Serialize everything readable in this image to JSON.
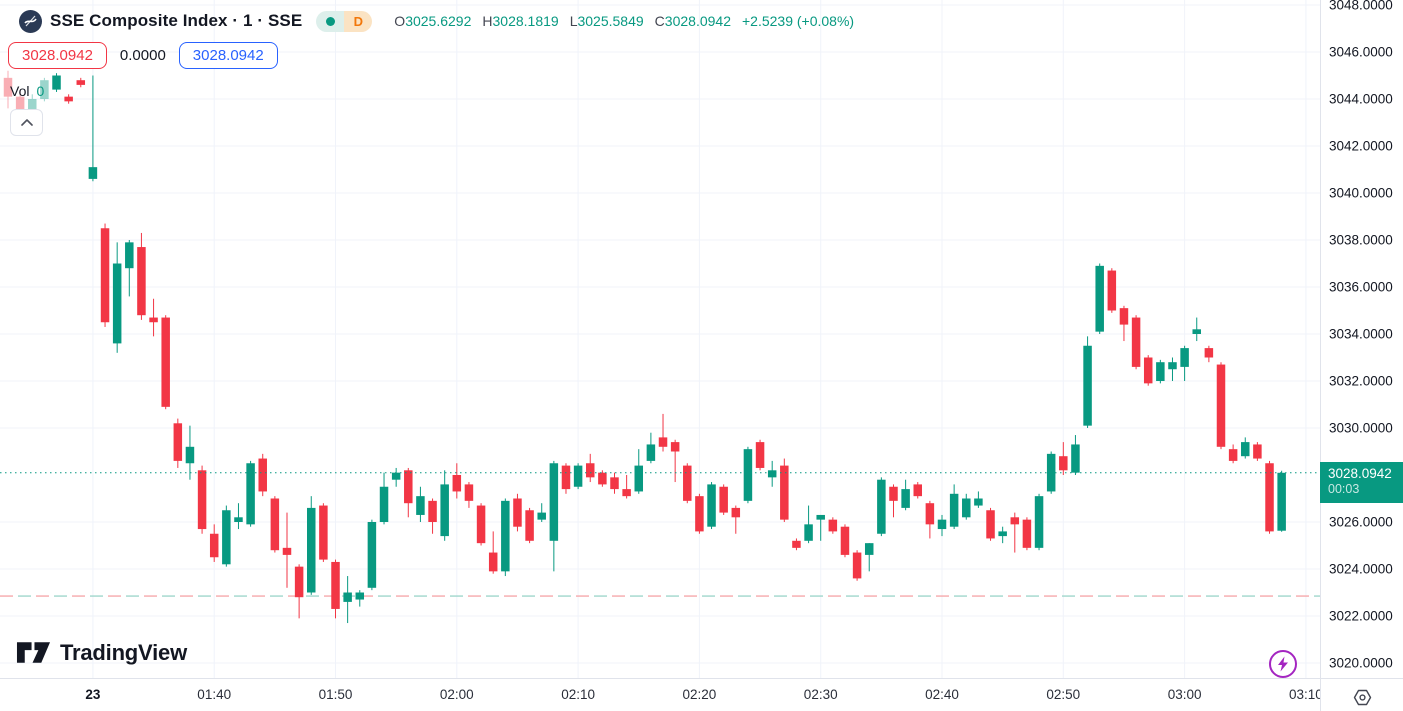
{
  "colors": {
    "up": "#089981",
    "down": "#f23645",
    "accent_blue": "#2962ff",
    "badge_bg": "#089981",
    "grid": "#f0f3fa",
    "axis_border": "#e0e3eb",
    "session_pink": "#f5a8ab",
    "session_teal": "#9fd6cc",
    "purple": "#a426c1"
  },
  "header": {
    "symbol_title": "SSE Composite Index · 1 · SSE",
    "status_dot": "market-status",
    "interval_badge": "D",
    "ohlc": {
      "open_label": "O",
      "open": "3025.6292",
      "high_label": "H",
      "high": "3028.1819",
      "low_label": "L",
      "low": "3025.5849",
      "close_label": "C",
      "close": "3028.0942",
      "change": "+2.5239 (+0.08%)"
    },
    "trade_panel": {
      "sell_price": "3028.0942",
      "spread": "0.0000",
      "buy_price": "3028.0942"
    },
    "volume": {
      "label": "Vol",
      "value": "0"
    }
  },
  "watermark": {
    "brand": "TradingView"
  },
  "price_axis": {
    "ticks": [
      "3048.0000",
      "3046.0000",
      "3044.0000",
      "3042.0000",
      "3040.0000",
      "3038.0000",
      "3036.0000",
      "3034.0000",
      "3032.0000",
      "3030.0000",
      "3026.0000",
      "3024.0000",
      "3022.0000",
      "3020.0000"
    ],
    "badge": {
      "price": "3028.0942",
      "countdown": "00:03"
    }
  },
  "time_axis": {
    "labels": [
      {
        "text": "23",
        "slot": 7,
        "bold": true
      },
      {
        "text": "01:40",
        "slot": 17
      },
      {
        "text": "01:50",
        "slot": 27
      },
      {
        "text": "02:00",
        "slot": 37
      },
      {
        "text": "02:10",
        "slot": 47
      },
      {
        "text": "02:20",
        "slot": 57
      },
      {
        "text": "02:30",
        "slot": 67
      },
      {
        "text": "02:40",
        "slot": 77
      },
      {
        "text": "02:50",
        "slot": 87
      },
      {
        "text": "03:00",
        "slot": 97
      },
      {
        "text": "03:10",
        "slot": 107
      }
    ]
  },
  "chart_data": {
    "type": "candlestick",
    "title": "SSE Composite Index",
    "interval": "1",
    "exchange": "SSE",
    "ylim": [
      3019.3,
      3048.2
    ],
    "grid": true,
    "legend_position": "top-left",
    "last_price": 3028.0942,
    "countdown": "00:03",
    "reference_lines": [
      {
        "name": "last-price",
        "value": 3028.0942,
        "style": "dotted"
      },
      {
        "name": "session-break",
        "value": 3022.85,
        "style": "dashed-bicolor"
      }
    ],
    "candles": [
      [
        "01:23",
        3044.9,
        3045.2,
        3043.6,
        3044.1
      ],
      [
        "01:24",
        3044.1,
        3044.4,
        3042.9,
        3043.4
      ],
      [
        "01:25",
        3043.4,
        3044.2,
        3043.2,
        3044.0
      ],
      [
        "01:26",
        3044.0,
        3044.9,
        3043.9,
        3044.8
      ],
      [
        "01:27",
        3044.4,
        3045.1,
        3044.3,
        3045.0
      ],
      [
        "01:28",
        3044.1,
        3044.2,
        3043.8,
        3043.9
      ],
      [
        "01:29",
        3044.8,
        3044.9,
        3044.5,
        3044.6
      ],
      [
        "01:30",
        3040.6,
        3045.0,
        3040.5,
        3041.1
      ],
      [
        "01:31",
        3038.5,
        3038.7,
        3034.3,
        3034.5
      ],
      [
        "01:32",
        3033.6,
        3037.9,
        3033.2,
        3037.0
      ],
      [
        "01:33",
        3036.8,
        3038.0,
        3035.6,
        3037.9
      ],
      [
        "01:34",
        3037.7,
        3038.3,
        3034.6,
        3034.8
      ],
      [
        "01:35",
        3034.7,
        3035.5,
        3033.9,
        3034.5
      ],
      [
        "01:36",
        3034.7,
        3034.8,
        3030.8,
        3030.9
      ],
      [
        "01:37",
        3030.2,
        3030.4,
        3028.3,
        3028.6
      ],
      [
        "01:38",
        3028.5,
        3030.1,
        3027.8,
        3029.2
      ],
      [
        "01:39",
        3028.2,
        3028.4,
        3025.5,
        3025.7
      ],
      [
        "01:40",
        3025.5,
        3025.9,
        3024.3,
        3024.5
      ],
      [
        "01:41",
        3024.2,
        3026.7,
        3024.1,
        3026.5
      ],
      [
        "01:42",
        3026.0,
        3026.8,
        3025.7,
        3026.2
      ],
      [
        "01:43",
        3025.9,
        3028.6,
        3025.8,
        3028.5
      ],
      [
        "01:44",
        3028.7,
        3028.9,
        3027.1,
        3027.3
      ],
      [
        "01:45",
        3027.0,
        3027.1,
        3024.7,
        3024.8
      ],
      [
        "01:46",
        3024.9,
        3026.4,
        3023.2,
        3024.6
      ],
      [
        "01:47",
        3024.1,
        3024.2,
        3021.9,
        3022.8
      ],
      [
        "01:48",
        3023.0,
        3027.1,
        3022.9,
        3026.6
      ],
      [
        "01:49",
        3026.7,
        3026.8,
        3024.3,
        3024.4
      ],
      [
        "01:50",
        3024.3,
        3024.4,
        3021.9,
        3022.3
      ],
      [
        "01:51",
        3022.6,
        3023.7,
        3021.7,
        3023.0
      ],
      [
        "01:52",
        3022.7,
        3023.1,
        3022.4,
        3023.0
      ],
      [
        "01:53",
        3023.2,
        3026.1,
        3023.1,
        3026.0
      ],
      [
        "01:54",
        3026.0,
        3028.1,
        3025.9,
        3027.5
      ],
      [
        "01:55",
        3027.8,
        3028.3,
        3027.5,
        3028.1
      ],
      [
        "01:56",
        3028.2,
        3028.3,
        3026.2,
        3026.8
      ],
      [
        "01:57",
        3026.3,
        3027.5,
        3026.0,
        3027.1
      ],
      [
        "01:58",
        3026.9,
        3027.0,
        3025.5,
        3026.0
      ],
      [
        "01:59",
        3025.4,
        3028.2,
        3025.2,
        3027.6
      ],
      [
        "02:00",
        3028.0,
        3028.5,
        3027.0,
        3027.3
      ],
      [
        "02:01",
        3027.6,
        3027.7,
        3026.6,
        3026.9
      ],
      [
        "02:02",
        3026.7,
        3026.8,
        3025.0,
        3025.1
      ],
      [
        "02:03",
        3024.7,
        3025.6,
        3023.8,
        3023.9
      ],
      [
        "02:04",
        3023.9,
        3027.0,
        3023.7,
        3026.9
      ],
      [
        "02:05",
        3027.0,
        3027.2,
        3025.6,
        3025.8
      ],
      [
        "02:06",
        3026.5,
        3026.6,
        3025.1,
        3025.2
      ],
      [
        "02:07",
        3026.1,
        3026.8,
        3026.0,
        3026.4
      ],
      [
        "02:08",
        3025.2,
        3028.6,
        3023.9,
        3028.5
      ],
      [
        "02:09",
        3028.4,
        3028.5,
        3027.2,
        3027.4
      ],
      [
        "02:10",
        3027.5,
        3028.5,
        3027.4,
        3028.4
      ],
      [
        "02:11",
        3028.5,
        3028.9,
        3027.7,
        3027.9
      ],
      [
        "02:12",
        3028.1,
        3028.2,
        3027.5,
        3027.6
      ],
      [
        "02:13",
        3027.9,
        3028.1,
        3027.2,
        3027.4
      ],
      [
        "02:14",
        3027.4,
        3028.0,
        3027.0,
        3027.1
      ],
      [
        "02:15",
        3027.3,
        3029.1,
        3027.2,
        3028.4
      ],
      [
        "02:16",
        3028.6,
        3029.8,
        3028.5,
        3029.3
      ],
      [
        "02:17",
        3029.6,
        3030.6,
        3029.0,
        3029.2
      ],
      [
        "02:18",
        3029.4,
        3029.5,
        3027.7,
        3029.0
      ],
      [
        "02:19",
        3028.4,
        3028.5,
        3026.8,
        3026.9
      ],
      [
        "02:20",
        3027.1,
        3027.2,
        3025.5,
        3025.6
      ],
      [
        "02:21",
        3025.8,
        3027.7,
        3025.7,
        3027.6
      ],
      [
        "02:22",
        3027.5,
        3027.6,
        3026.3,
        3026.4
      ],
      [
        "02:23",
        3026.6,
        3026.7,
        3025.5,
        3026.2
      ],
      [
        "02:24",
        3026.9,
        3029.2,
        3026.8,
        3029.1
      ],
      [
        "02:25",
        3029.4,
        3029.5,
        3028.2,
        3028.3
      ],
      [
        "02:26",
        3027.9,
        3028.6,
        3027.5,
        3028.2
      ],
      [
        "02:27",
        3028.4,
        3028.7,
        3026.0,
        3026.1
      ],
      [
        "02:28",
        3025.2,
        3025.3,
        3024.8,
        3024.9
      ],
      [
        "02:29",
        3025.2,
        3026.7,
        3025.1,
        3025.9
      ],
      [
        "02:30",
        3026.1,
        3026.3,
        3025.2,
        3026.3
      ],
      [
        "02:31",
        3026.1,
        3026.2,
        3025.5,
        3025.6
      ],
      [
        "02:32",
        3025.8,
        3025.9,
        3024.5,
        3024.6
      ],
      [
        "02:33",
        3024.7,
        3024.8,
        3023.5,
        3023.6
      ],
      [
        "02:34",
        3024.6,
        3025.1,
        3023.9,
        3025.1
      ],
      [
        "02:35",
        3025.5,
        3027.9,
        3025.4,
        3027.8
      ],
      [
        "02:36",
        3027.5,
        3027.6,
        3026.2,
        3026.9
      ],
      [
        "02:37",
        3026.6,
        3027.8,
        3026.5,
        3027.4
      ],
      [
        "02:38",
        3027.6,
        3027.7,
        3027.0,
        3027.1
      ],
      [
        "02:39",
        3026.8,
        3026.9,
        3025.3,
        3025.9
      ],
      [
        "02:40",
        3025.7,
        3026.3,
        3025.4,
        3026.1
      ],
      [
        "02:41",
        3025.8,
        3027.6,
        3025.7,
        3027.2
      ],
      [
        "02:42",
        3026.2,
        3027.2,
        3026.1,
        3027.0
      ],
      [
        "02:43",
        3026.7,
        3027.3,
        3026.6,
        3027.0
      ],
      [
        "02:44",
        3026.5,
        3026.6,
        3025.2,
        3025.3
      ],
      [
        "02:45",
        3025.4,
        3025.8,
        3025.1,
        3025.6
      ],
      [
        "02:46",
        3026.2,
        3026.4,
        3024.7,
        3025.9
      ],
      [
        "02:47",
        3026.1,
        3026.2,
        3024.8,
        3024.9
      ],
      [
        "02:48",
        3024.9,
        3027.2,
        3024.8,
        3027.1
      ],
      [
        "02:49",
        3027.3,
        3029.0,
        3027.2,
        3028.9
      ],
      [
        "02:50",
        3028.8,
        3029.4,
        3028.0,
        3028.2
      ],
      [
        "02:51",
        3028.1,
        3029.7,
        3028.0,
        3029.3
      ],
      [
        "02:52",
        3030.1,
        3033.9,
        3030.0,
        3033.5
      ],
      [
        "02:53",
        3034.1,
        3037.0,
        3034.0,
        3036.9
      ],
      [
        "02:54",
        3036.7,
        3036.8,
        3034.9,
        3035.0
      ],
      [
        "02:55",
        3035.1,
        3035.2,
        3033.7,
        3034.4
      ],
      [
        "02:56",
        3034.7,
        3034.8,
        3032.5,
        3032.6
      ],
      [
        "02:57",
        3033.0,
        3033.1,
        3031.8,
        3031.9
      ],
      [
        "02:58",
        3032.0,
        3032.9,
        3031.9,
        3032.8
      ],
      [
        "02:59",
        3032.5,
        3033.0,
        3032.0,
        3032.8
      ],
      [
        "03:00",
        3032.6,
        3033.5,
        3032.0,
        3033.4
      ],
      [
        "03:01",
        3034.0,
        3034.7,
        3033.7,
        3034.2
      ],
      [
        "03:02",
        3033.4,
        3033.5,
        3032.8,
        3033.0
      ],
      [
        "03:03",
        3032.7,
        3032.8,
        3029.1,
        3029.2
      ],
      [
        "03:04",
        3029.1,
        3029.3,
        3028.5,
        3028.6
      ],
      [
        "03:05",
        3028.8,
        3029.6,
        3028.7,
        3029.4
      ],
      [
        "03:06",
        3029.3,
        3029.4,
        3028.6,
        3028.7
      ],
      [
        "03:07",
        3028.5,
        3028.6,
        3025.5,
        3025.6
      ],
      [
        "03:08",
        3025.6292,
        3028.1819,
        3025.5849,
        3028.0942
      ]
    ]
  }
}
